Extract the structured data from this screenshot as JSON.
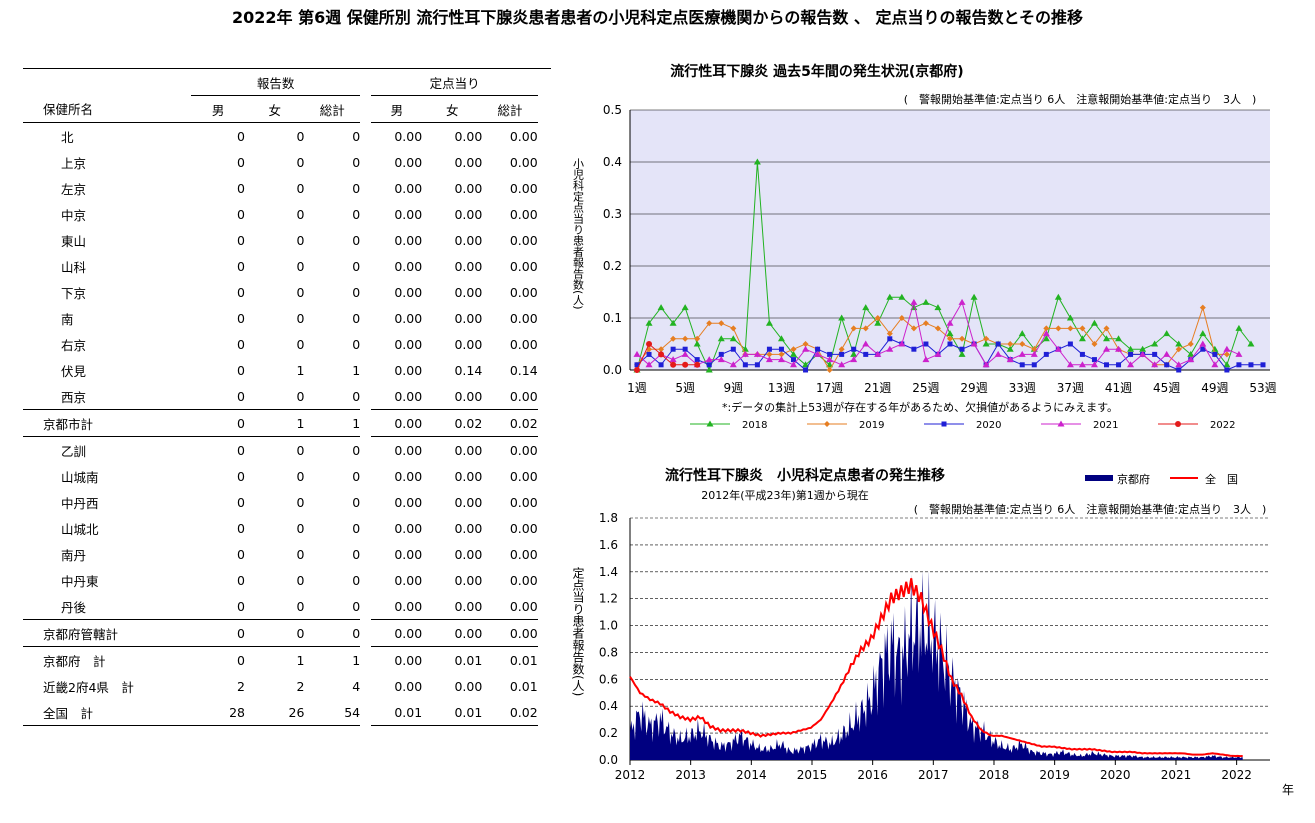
{
  "title": "2022年 第6週 保健所別 流行性耳下腺炎患者患者の小児科定点医療機関からの報告数 、 定点当りの報告数とその推移",
  "table": {
    "group_headers": {
      "reports": "報告数",
      "per_sentinel": "定点当り"
    },
    "columns": [
      "保健所名",
      "男",
      "女",
      "総計",
      "男",
      "女",
      "総計"
    ],
    "rows": [
      {
        "name": "北",
        "vals": [
          "0",
          "0",
          "0",
          "0.00",
          "0.00",
          "0.00"
        ],
        "indent": true
      },
      {
        "name": "上京",
        "vals": [
          "0",
          "0",
          "0",
          "0.00",
          "0.00",
          "0.00"
        ],
        "indent": true
      },
      {
        "name": "左京",
        "vals": [
          "0",
          "0",
          "0",
          "0.00",
          "0.00",
          "0.00"
        ],
        "indent": true
      },
      {
        "name": "中京",
        "vals": [
          "0",
          "0",
          "0",
          "0.00",
          "0.00",
          "0.00"
        ],
        "indent": true
      },
      {
        "name": "東山",
        "vals": [
          "0",
          "0",
          "0",
          "0.00",
          "0.00",
          "0.00"
        ],
        "indent": true
      },
      {
        "name": "山科",
        "vals": [
          "0",
          "0",
          "0",
          "0.00",
          "0.00",
          "0.00"
        ],
        "indent": true
      },
      {
        "name": "下京",
        "vals": [
          "0",
          "0",
          "0",
          "0.00",
          "0.00",
          "0.00"
        ],
        "indent": true
      },
      {
        "name": "南",
        "vals": [
          "0",
          "0",
          "0",
          "0.00",
          "0.00",
          "0.00"
        ],
        "indent": true
      },
      {
        "name": "右京",
        "vals": [
          "0",
          "0",
          "0",
          "0.00",
          "0.00",
          "0.00"
        ],
        "indent": true
      },
      {
        "name": "伏見",
        "vals": [
          "0",
          "1",
          "1",
          "0.00",
          "0.14",
          "0.14"
        ],
        "indent": true
      },
      {
        "name": "西京",
        "vals": [
          "0",
          "0",
          "0",
          "0.00",
          "0.00",
          "0.00"
        ],
        "indent": true
      },
      {
        "name": "京都市計",
        "vals": [
          "0",
          "1",
          "1",
          "0.00",
          "0.02",
          "0.02"
        ],
        "indent": false,
        "line": true
      },
      {
        "name": "乙訓",
        "vals": [
          "0",
          "0",
          "0",
          "0.00",
          "0.00",
          "0.00"
        ],
        "indent": true,
        "line": true
      },
      {
        "name": "山城南",
        "vals": [
          "0",
          "0",
          "0",
          "0.00",
          "0.00",
          "0.00"
        ],
        "indent": true
      },
      {
        "name": "中丹西",
        "vals": [
          "0",
          "0",
          "0",
          "0.00",
          "0.00",
          "0.00"
        ],
        "indent": true
      },
      {
        "name": "山城北",
        "vals": [
          "0",
          "0",
          "0",
          "0.00",
          "0.00",
          "0.00"
        ],
        "indent": true
      },
      {
        "name": "南丹",
        "vals": [
          "0",
          "0",
          "0",
          "0.00",
          "0.00",
          "0.00"
        ],
        "indent": true
      },
      {
        "name": "中丹東",
        "vals": [
          "0",
          "0",
          "0",
          "0.00",
          "0.00",
          "0.00"
        ],
        "indent": true
      },
      {
        "name": "丹後",
        "vals": [
          "0",
          "0",
          "0",
          "0.00",
          "0.00",
          "0.00"
        ],
        "indent": true
      },
      {
        "name": "京都府管轄計",
        "vals": [
          "0",
          "0",
          "0",
          "0.00",
          "0.00",
          "0.00"
        ],
        "indent": false,
        "line": true
      },
      {
        "name": "京都府　計",
        "vals": [
          "0",
          "1",
          "1",
          "0.00",
          "0.01",
          "0.01"
        ],
        "indent": false,
        "line": true
      },
      {
        "name": "近畿2府4県　計",
        "vals": [
          "2",
          "2",
          "4",
          "0.00",
          "0.00",
          "0.01"
        ],
        "indent": false
      },
      {
        "name": "全国　計",
        "vals": [
          "28",
          "26",
          "54",
          "0.01",
          "0.01",
          "0.02"
        ],
        "indent": false,
        "last": true
      }
    ]
  },
  "chart_data": [
    {
      "type": "line",
      "title": "流行性耳下腺炎 過去5年間の発生状況(京都府)",
      "subtitle": "(　警報開始基準値:定点当り 6人　注意報開始基準値:定点当り　3人　)",
      "ylabel": "小児科定点当り患者報告数(人)",
      "ylim": [
        0,
        0.5
      ],
      "yticks": [
        "0.0",
        "0.1",
        "0.2",
        "0.3",
        "0.4",
        "0.5"
      ],
      "xticks": [
        "1週",
        "5週",
        "9週",
        "13週",
        "17週",
        "21週",
        "25週",
        "29週",
        "33週",
        "37週",
        "41週",
        "45週",
        "49週",
        "53週"
      ],
      "note": "*:データの集計上53週が存在する年があるため、欠損値があるようにみえます。",
      "grid": true,
      "colors": {
        "background": "#e4e4f8",
        "grid": "#000000"
      },
      "series": [
        {
          "name": "2018",
          "color": "#22b322",
          "marker": "triangle",
          "values": [
            0.0,
            0.09,
            0.12,
            0.09,
            0.12,
            0.05,
            0.0,
            0.06,
            0.06,
            0.04,
            0.4,
            0.09,
            0.06,
            0.03,
            0.01,
            0.03,
            0.01,
            0.1,
            0.03,
            0.12,
            0.09,
            0.14,
            0.14,
            0.12,
            0.13,
            0.12,
            0.07,
            0.03,
            0.14,
            0.05,
            0.05,
            0.04,
            0.07,
            0.04,
            0.06,
            0.14,
            0.1,
            0.06,
            0.09,
            0.06,
            0.06,
            0.04,
            0.04,
            0.05,
            0.07,
            0.05,
            0.03,
            0.07,
            0.04,
            0.01,
            0.08,
            0.05
          ]
        },
        {
          "name": "2019",
          "color": "#e67e22",
          "marker": "diamond",
          "values": [
            0.01,
            0.04,
            0.04,
            0.06,
            0.06,
            0.06,
            0.09,
            0.09,
            0.08,
            0.03,
            0.03,
            0.03,
            0.03,
            0.04,
            0.05,
            0.04,
            0.0,
            0.04,
            0.08,
            0.08,
            0.1,
            0.07,
            0.1,
            0.08,
            0.09,
            0.08,
            0.06,
            0.06,
            0.05,
            0.06,
            0.05,
            0.05,
            0.05,
            0.04,
            0.08,
            0.08,
            0.08,
            0.08,
            0.05,
            0.08,
            0.04,
            0.03,
            0.03,
            0.01,
            0.01,
            0.04,
            0.05,
            0.12,
            0.03,
            0.03
          ]
        },
        {
          "name": "2020",
          "color": "#1f1fd6",
          "marker": "square",
          "values": [
            0.01,
            0.03,
            0.01,
            0.04,
            0.04,
            0.02,
            0.01,
            0.03,
            0.04,
            0.01,
            0.01,
            0.04,
            0.04,
            0.02,
            0.0,
            0.04,
            0.03,
            0.03,
            0.04,
            0.03,
            0.03,
            0.06,
            0.05,
            0.04,
            0.05,
            0.03,
            0.05,
            0.04,
            0.05,
            0.01,
            0.05,
            0.02,
            0.01,
            0.01,
            0.03,
            0.04,
            0.05,
            0.03,
            0.02,
            0.01,
            0.01,
            0.03,
            0.03,
            0.03,
            0.01,
            0.0,
            0.02,
            0.04,
            0.03,
            0.0,
            0.01,
            0.01,
            0.01
          ]
        },
        {
          "name": "2021",
          "color": "#cc22cc",
          "marker": "triangle",
          "values": [
            0.03,
            0.01,
            0.03,
            0.02,
            0.03,
            0.01,
            0.02,
            0.02,
            0.01,
            0.03,
            0.03,
            0.02,
            0.02,
            0.01,
            0.04,
            0.03,
            0.02,
            0.01,
            0.02,
            0.05,
            0.03,
            0.04,
            0.05,
            0.13,
            0.02,
            0.03,
            0.09,
            0.13,
            0.05,
            0.01,
            0.03,
            0.02,
            0.03,
            0.03,
            0.07,
            0.04,
            0.01,
            0.01,
            0.01,
            0.04,
            0.04,
            0.01,
            0.03,
            0.01,
            0.03,
            0.01,
            0.02,
            0.05,
            0.01,
            0.04,
            0.03
          ]
        },
        {
          "name": "2022",
          "color": "#e31a1a",
          "marker": "circle",
          "values": [
            0.0,
            0.05,
            0.03,
            0.01,
            0.01,
            0.01
          ]
        }
      ]
    },
    {
      "type": "area",
      "title": "流行性耳下腺炎　小児科定点患者の発生推移",
      "subtitle": "2012年(平成23年)第1週から現在",
      "threshold_note": "(　警報開始基準値:定点当り 6人　注意報開始基準値:定点当り　3人　)",
      "ylabel": "定点当り患者報告数(人)",
      "xlabel": "年",
      "ylim": [
        0,
        1.8
      ],
      "yticks": [
        "0.0",
        "0.2",
        "0.4",
        "0.6",
        "0.8",
        "1.0",
        "1.2",
        "1.4",
        "1.6",
        "1.8"
      ],
      "xticks": [
        "2012",
        "2013",
        "2014",
        "2015",
        "2016",
        "2017",
        "2018",
        "2019",
        "2020",
        "2021",
        "2022"
      ],
      "legend": [
        "京都府",
        "全　国"
      ],
      "colors": {
        "kyoto": "#000080",
        "national": "#ff0000"
      },
      "series": [
        {
          "name": "京都府",
          "x_start": 2012.0,
          "x_end": 2022.1,
          "values": [
            0.2,
            0.35,
            0.25,
            0.3,
            0.2,
            0.15,
            0.18,
            0.22,
            0.15,
            0.1,
            0.12,
            0.18,
            0.12,
            0.08,
            0.08,
            0.12,
            0.06,
            0.08,
            0.1,
            0.15,
            0.12,
            0.18,
            0.25,
            0.35,
            0.45,
            0.7,
            0.85,
            0.75,
            0.95,
            1.0,
            0.92,
            0.8,
            0.6,
            0.45,
            0.25,
            0.22,
            0.15,
            0.1,
            0.08,
            0.12,
            0.06,
            0.05,
            0.04,
            0.06,
            0.04,
            0.03,
            0.05,
            0.04,
            0.03,
            0.03,
            0.03,
            0.02,
            0.02,
            0.02,
            0.02,
            0.02,
            0.02,
            0.02,
            0.03,
            0.02,
            0.02,
            0.02
          ]
        },
        {
          "name": "全　国",
          "x_start": 2012.0,
          "x_end": 2022.1,
          "values": [
            0.62,
            0.5,
            0.45,
            0.42,
            0.36,
            0.32,
            0.3,
            0.32,
            0.25,
            0.22,
            0.22,
            0.22,
            0.2,
            0.18,
            0.19,
            0.2,
            0.2,
            0.22,
            0.24,
            0.3,
            0.42,
            0.55,
            0.7,
            0.82,
            0.9,
            1.05,
            1.2,
            1.25,
            1.3,
            1.2,
            1.0,
            0.82,
            0.6,
            0.48,
            0.32,
            0.22,
            0.18,
            0.18,
            0.16,
            0.14,
            0.12,
            0.1,
            0.1,
            0.09,
            0.08,
            0.08,
            0.08,
            0.07,
            0.06,
            0.06,
            0.06,
            0.05,
            0.05,
            0.05,
            0.05,
            0.05,
            0.04,
            0.04,
            0.05,
            0.04,
            0.03,
            0.03
          ]
        }
      ]
    }
  ]
}
